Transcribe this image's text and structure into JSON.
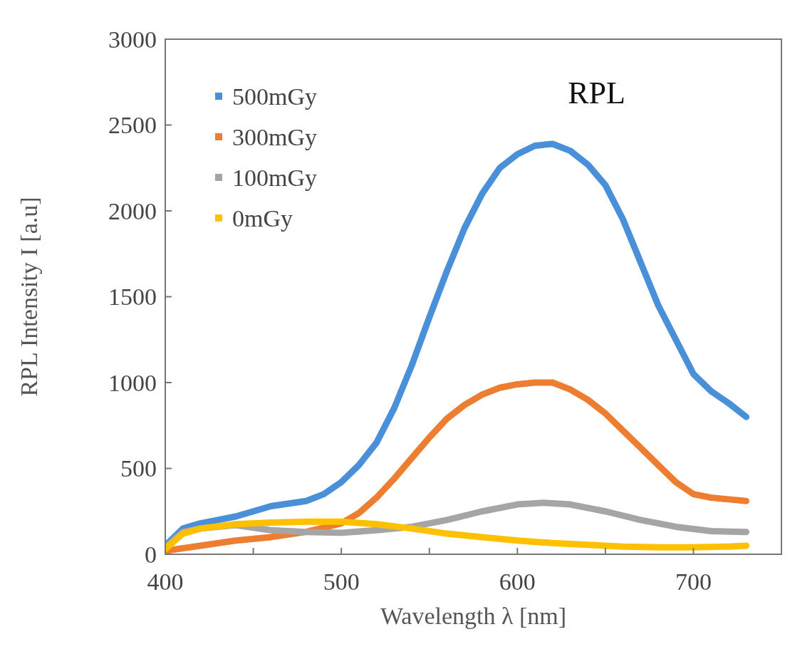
{
  "chart_data": {
    "type": "line",
    "title": "RPL",
    "xlabel": "Wavelength λ [nm]",
    "ylabel": "RPL Intensity I [a.u]",
    "xlim": [
      400,
      750
    ],
    "xticks": [
      400,
      {
        "value": 450,
        "label": null
      },
      500,
      {
        "value": 550,
        "label": null
      },
      600,
      {
        "value": 650,
        "label": null
      },
      700,
      {
        "value": 750,
        "label": null
      }
    ],
    "ylim": [
      0,
      3000
    ],
    "yticks": [
      0,
      500,
      1000,
      1500,
      2000,
      2500,
      3000
    ],
    "grid": false,
    "legend": "top left",
    "series": [
      {
        "name": "500mGy",
        "color": "#4a90d9",
        "x": [
          400,
          410,
          420,
          440,
          460,
          480,
          490,
          500,
          510,
          520,
          530,
          540,
          550,
          560,
          570,
          580,
          590,
          600,
          610,
          620,
          630,
          640,
          650,
          660,
          670,
          680,
          690,
          700,
          710,
          720,
          730
        ],
        "values": [
          50,
          150,
          180,
          220,
          280,
          310,
          350,
          420,
          520,
          650,
          850,
          1100,
          1380,
          1650,
          1900,
          2100,
          2250,
          2330,
          2380,
          2390,
          2350,
          2270,
          2150,
          1950,
          1700,
          1450,
          1250,
          1050,
          950,
          880,
          800
        ]
      },
      {
        "name": "300mGy",
        "color": "#ed7d31",
        "x": [
          400,
          420,
          440,
          460,
          480,
          500,
          510,
          520,
          530,
          540,
          550,
          560,
          570,
          580,
          590,
          600,
          610,
          620,
          630,
          640,
          650,
          660,
          670,
          680,
          690,
          700,
          710,
          720,
          730
        ],
        "values": [
          20,
          50,
          80,
          100,
          130,
          180,
          240,
          330,
          440,
          560,
          680,
          790,
          870,
          930,
          970,
          990,
          1000,
          1000,
          960,
          900,
          820,
          720,
          620,
          520,
          420,
          350,
          330,
          320,
          310
        ]
      },
      {
        "name": "100mGy",
        "color": "#a5a5a5",
        "x": [
          400,
          410,
          420,
          440,
          460,
          480,
          500,
          520,
          540,
          560,
          580,
          600,
          615,
          630,
          650,
          670,
          690,
          710,
          730
        ],
        "values": [
          40,
          130,
          150,
          170,
          140,
          130,
          125,
          140,
          160,
          200,
          250,
          290,
          300,
          290,
          250,
          200,
          160,
          135,
          130
        ]
      },
      {
        "name": "0mGy",
        "color": "#ffc000",
        "x": [
          400,
          410,
          420,
          440,
          460,
          480,
          500,
          520,
          540,
          560,
          580,
          600,
          620,
          640,
          660,
          680,
          700,
          720,
          730
        ],
        "values": [
          30,
          120,
          150,
          175,
          185,
          190,
          190,
          175,
          150,
          120,
          100,
          80,
          65,
          55,
          45,
          40,
          40,
          45,
          50
        ]
      }
    ]
  }
}
